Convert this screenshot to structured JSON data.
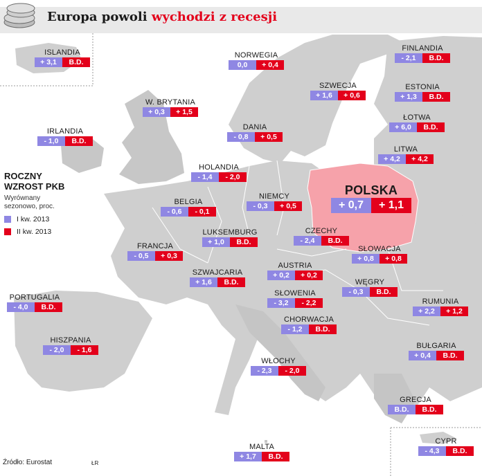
{
  "title": {
    "black": "Europa powoli",
    "red": "wychodzi z recesji"
  },
  "colors": {
    "q1": "#8f87e3",
    "q2": "#e3001b",
    "highlight": "#f6a2aa",
    "land": "#cfcfcf",
    "header": "#e9e9e9"
  },
  "legend": {
    "title1": "ROCZNY",
    "title2": "WZROST PKB",
    "subtitle": "Wyrównany sezonowo, proc.",
    "q1": "I kw. 2013",
    "q2": "II kw. 2013"
  },
  "countries": [
    {
      "name": "ISLANDIA",
      "q1": "+ 3,1",
      "q2": "B.D."
    },
    {
      "name": "NORWEGIA",
      "q1": "0,0",
      "q2": "+ 0,4"
    },
    {
      "name": "FINLANDIA",
      "q1": "- 2,1",
      "q2": "B.D."
    },
    {
      "name": "SZWECJA",
      "q1": "+ 1,6",
      "q2": "+ 0,6"
    },
    {
      "name": "ESTONIA",
      "q1": "+ 1,3",
      "q2": "B.D."
    },
    {
      "name": "W. BRYTANIA",
      "q1": "+ 0,3",
      "q2": "+ 1,5"
    },
    {
      "name": "ŁOTWA",
      "q1": "+ 6,0",
      "q2": "B.D."
    },
    {
      "name": "IRLANDIA",
      "q1": "- 1,0",
      "q2": "B.D."
    },
    {
      "name": "DANIA",
      "q1": "- 0,8",
      "q2": "+ 0,5"
    },
    {
      "name": "LITWA",
      "q1": "+ 4,2",
      "q2": "+ 4,2"
    },
    {
      "name": "HOLANDIA",
      "q1": "- 1,4",
      "q2": "- 2,0"
    },
    {
      "name": "NIEMCY",
      "q1": "- 0,3",
      "q2": "+ 0,5"
    },
    {
      "name": "BELGIA",
      "q1": "- 0,6",
      "q2": "- 0,1"
    },
    {
      "name": "POLSKA",
      "q1": "+ 0,7",
      "q2": "+ 1,1"
    },
    {
      "name": "CZECHY",
      "q1": "- 2,4",
      "q2": "B.D."
    },
    {
      "name": "LUKSEMBURG",
      "q1": "+ 1,0",
      "q2": "B.D."
    },
    {
      "name": "FRANCJA",
      "q1": "- 0,5",
      "q2": "+ 0,3"
    },
    {
      "name": "SŁOWACJA",
      "q1": "+ 0,8",
      "q2": "+ 0,8"
    },
    {
      "name": "AUSTRIA",
      "q1": "+ 0,2",
      "q2": "+ 0,2"
    },
    {
      "name": "SZWAJCARIA",
      "q1": "+ 1,6",
      "q2": "B.D."
    },
    {
      "name": "WĘGRY",
      "q1": "- 0,3",
      "q2": "B.D."
    },
    {
      "name": "SŁOWENIA",
      "q1": "- 3,2",
      "q2": "- 2,2"
    },
    {
      "name": "PORTUGALIA",
      "q1": "- 4,0",
      "q2": "B.D."
    },
    {
      "name": "RUMUNIA",
      "q1": "+ 2,2",
      "q2": "+ 1,2"
    },
    {
      "name": "CHORWACJA",
      "q1": "- 1,2",
      "q2": "B.D."
    },
    {
      "name": "HISZPANIA",
      "q1": "- 2,0",
      "q2": "- 1,6"
    },
    {
      "name": "BUŁGARIA",
      "q1": "+ 0,4",
      "q2": "B.D."
    },
    {
      "name": "WŁOCHY",
      "q1": "- 2,3",
      "q2": "- 2,0"
    },
    {
      "name": "GRECJA",
      "q1": "B.D.",
      "q2": "B.D."
    },
    {
      "name": "CYPR",
      "q1": "- 4,3",
      "q2": "B.D."
    },
    {
      "name": "MALTA",
      "q1": "+ 1,7",
      "q2": "B.D."
    }
  ],
  "footer": {
    "source": "Źródło: Eurostat",
    "mark": "ŁR"
  }
}
